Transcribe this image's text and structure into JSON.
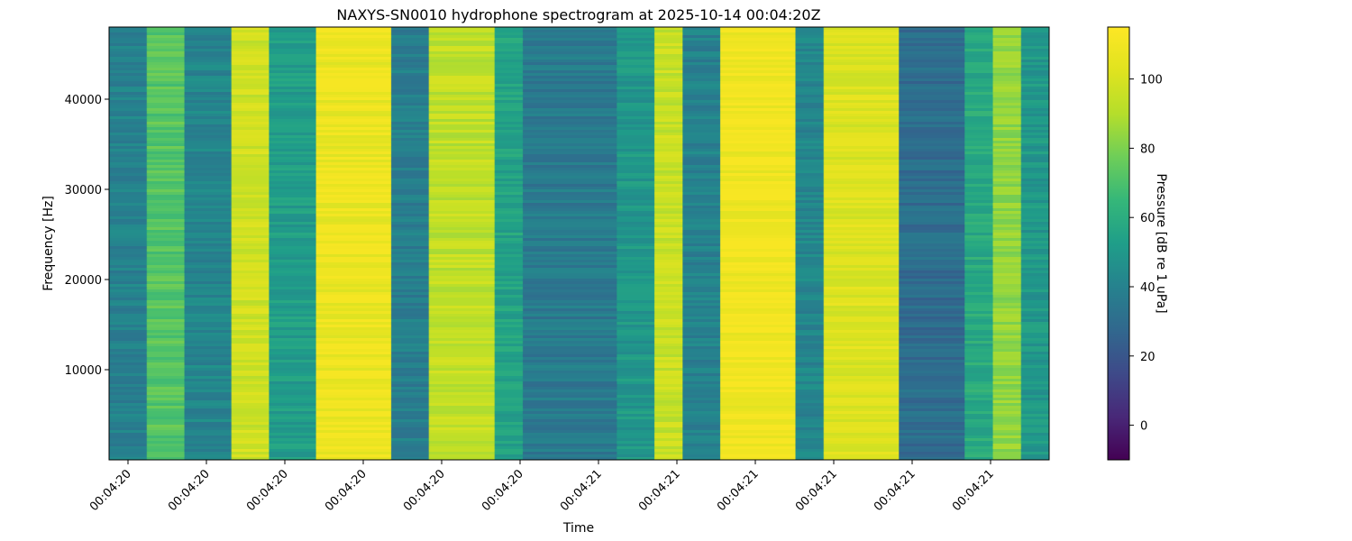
{
  "chart_data": {
    "type": "heatmap",
    "title": "NAXYS-SN0010 hydrophone spectrogram at 2025-10-14 00:04:20Z",
    "xlabel": "Time",
    "ylabel": "Frequency [Hz]",
    "x_tick_labels": [
      "00:04:20",
      "00:04:20",
      "00:04:20",
      "00:04:20",
      "00:04:20",
      "00:04:20",
      "00:04:21",
      "00:04:21",
      "00:04:21",
      "00:04:21",
      "00:04:21",
      "00:04:21"
    ],
    "y_ticks": [
      10000,
      20000,
      30000,
      40000
    ],
    "ylim": [
      0,
      48000
    ],
    "colorbar": {
      "label": "Pressure [dB re 1 uPa]",
      "colormap": "viridis",
      "range": [
        -10,
        115
      ],
      "ticks": [
        0,
        20,
        40,
        60,
        80,
        100
      ]
    },
    "time_bands": [
      {
        "x0": 0.0,
        "x1": 0.04,
        "level": 40
      },
      {
        "x0": 0.04,
        "x1": 0.08,
        "level": 72
      },
      {
        "x0": 0.08,
        "x1": 0.13,
        "level": 42
      },
      {
        "x0": 0.13,
        "x1": 0.17,
        "level": 98
      },
      {
        "x0": 0.17,
        "x1": 0.22,
        "level": 52
      },
      {
        "x0": 0.22,
        "x1": 0.3,
        "level": 108
      },
      {
        "x0": 0.3,
        "x1": 0.34,
        "level": 38
      },
      {
        "x0": 0.34,
        "x1": 0.41,
        "level": 94
      },
      {
        "x0": 0.41,
        "x1": 0.44,
        "level": 55
      },
      {
        "x0": 0.44,
        "x1": 0.54,
        "level": 36
      },
      {
        "x0": 0.54,
        "x1": 0.58,
        "level": 50
      },
      {
        "x0": 0.58,
        "x1": 0.61,
        "level": 96
      },
      {
        "x0": 0.61,
        "x1": 0.65,
        "level": 40
      },
      {
        "x0": 0.65,
        "x1": 0.73,
        "level": 110
      },
      {
        "x0": 0.73,
        "x1": 0.76,
        "level": 42
      },
      {
        "x0": 0.76,
        "x1": 0.84,
        "level": 102
      },
      {
        "x0": 0.84,
        "x1": 0.91,
        "level": 30
      },
      {
        "x0": 0.91,
        "x1": 0.94,
        "level": 58
      },
      {
        "x0": 0.94,
        "x1": 0.97,
        "level": 84
      },
      {
        "x0": 0.97,
        "x1": 1.0,
        "level": 50
      }
    ]
  }
}
